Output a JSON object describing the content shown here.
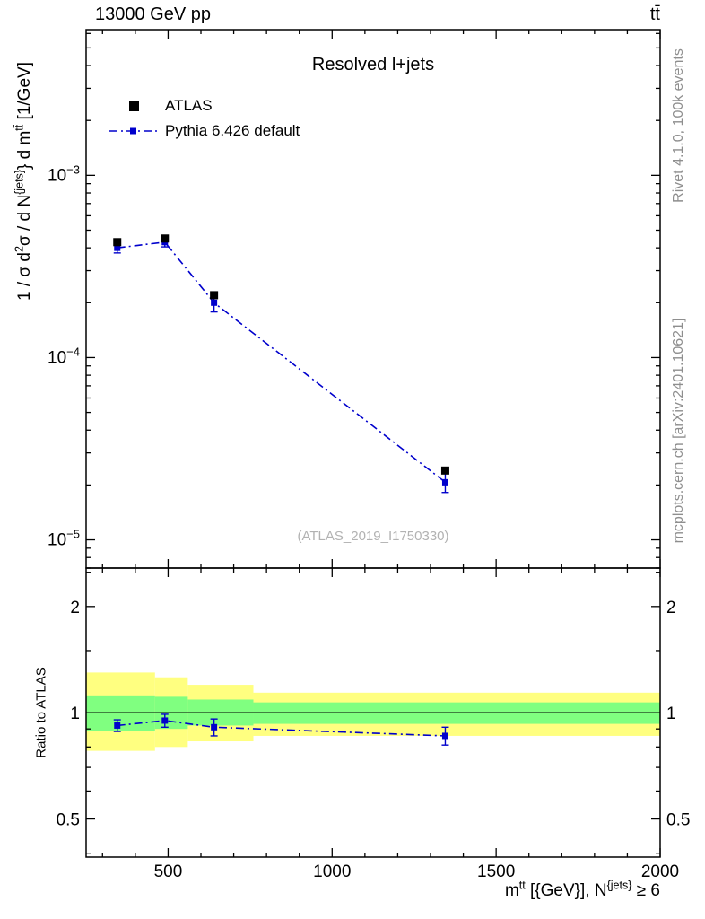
{
  "header": {
    "left_title": "13000 GeV pp",
    "right_title": "tt̄"
  },
  "plot_title": "Resolved l+jets",
  "watermark": "(ATLAS_2019_I1750330)",
  "side_notes": {
    "top_right": "Rivet 4.1.0, 100k events",
    "bottom_right": "mcplots.cern.ch [arXiv:2401.10621]"
  },
  "legend": [
    {
      "label": "ATLAS",
      "marker": "black-filled-square"
    },
    {
      "label": "Pythia 6.426 default",
      "marker": "blue-dashdot-line-with-square"
    }
  ],
  "axes": {
    "ylabel_parts": [
      {
        "t": "1 / σ d"
      },
      {
        "t": "2",
        "sup": true
      },
      {
        "t": "σ / d N"
      },
      {
        "t": "{jets}",
        "sup": true
      },
      {
        "t": "} d m"
      },
      {
        "t": "tt̄",
        "sup": true
      },
      {
        "t": " [1/GeV]"
      }
    ],
    "xlabel_parts": [
      {
        "t": "m"
      },
      {
        "t": "tt̄",
        "sup": true
      },
      {
        "t": " [{GeV}], N"
      },
      {
        "t": "{jets}",
        "sup": true
      },
      {
        "t": " ≥ 6"
      }
    ],
    "ratio_ylabel": "Ratio to ATLAS"
  },
  "chart_data": [
    {
      "type": "scatter",
      "title": "Resolved l+jets",
      "xlabel": "m^tt [{GeV}], N^{jets} >= 6",
      "ylabel": "1 / σ d²σ / d N^{jets} d m^tt [1/GeV]",
      "xscale": "linear",
      "yscale": "log",
      "xlim": [
        250,
        2000
      ],
      "ylim": [
        7e-06,
        0.0063
      ],
      "xticks_major": [
        500,
        1000,
        1500,
        2000
      ],
      "xtick_minor_step": 100,
      "yticks_major_exponents": [
        -5,
        -4,
        -3
      ],
      "legend_position": "upper-left-inside",
      "grid": false,
      "series": [
        {
          "name": "ATLAS",
          "color": "#000000",
          "marker": "filled-square",
          "marker_px": 9,
          "x": [
            345,
            490,
            640,
            1345
          ],
          "y": [
            0.00043,
            0.00045,
            0.00022,
            2.4e-05
          ]
        },
        {
          "name": "Pythia 6.426 default",
          "color": "#0000cc",
          "marker": "filled-square",
          "marker_px": 7,
          "line": "dash-dot",
          "x": [
            345,
            490,
            640,
            1345
          ],
          "y": [
            0.0004,
            0.00043,
            0.0002,
            2.07e-05
          ],
          "yerr": [
            2.5e-05,
            2.5e-05,
            2.2e-05,
            2.5e-06
          ]
        }
      ]
    },
    {
      "type": "ratio-line-with-bands",
      "ylabel": "Ratio to ATLAS",
      "yscale": "log",
      "ylim": [
        0.39,
        2.57
      ],
      "yticks_major": [
        0.5,
        1,
        2
      ],
      "yticks_minor": [
        0.4,
        0.6,
        0.7,
        0.8,
        0.9,
        1.5,
        2.5
      ],
      "reference_line": 1,
      "bands": {
        "yellow_color": "#ffff80",
        "green_color": "#80ff80",
        "segments": [
          {
            "x0": 250,
            "x1": 460,
            "yellow": [
              0.78,
              1.3
            ],
            "green": [
              0.89,
              1.12
            ]
          },
          {
            "x0": 460,
            "x1": 560,
            "yellow": [
              0.8,
              1.26
            ],
            "green": [
              0.9,
              1.11
            ]
          },
          {
            "x0": 560,
            "x1": 760,
            "yellow": [
              0.83,
              1.2
            ],
            "green": [
              0.92,
              1.09
            ]
          },
          {
            "x0": 760,
            "x1": 2000,
            "yellow": [
              0.86,
              1.14
            ],
            "green": [
              0.93,
              1.07
            ]
          }
        ]
      },
      "series": [
        {
          "name": "Pythia 6.426 default / ATLAS",
          "color": "#0000cc",
          "marker": "filled-square",
          "marker_px": 7,
          "line": "dash-dot",
          "x": [
            345,
            490,
            640,
            1345
          ],
          "y": [
            0.92,
            0.95,
            0.91,
            0.86
          ],
          "yerr": [
            0.035,
            0.04,
            0.05,
            0.05
          ]
        }
      ]
    }
  ]
}
